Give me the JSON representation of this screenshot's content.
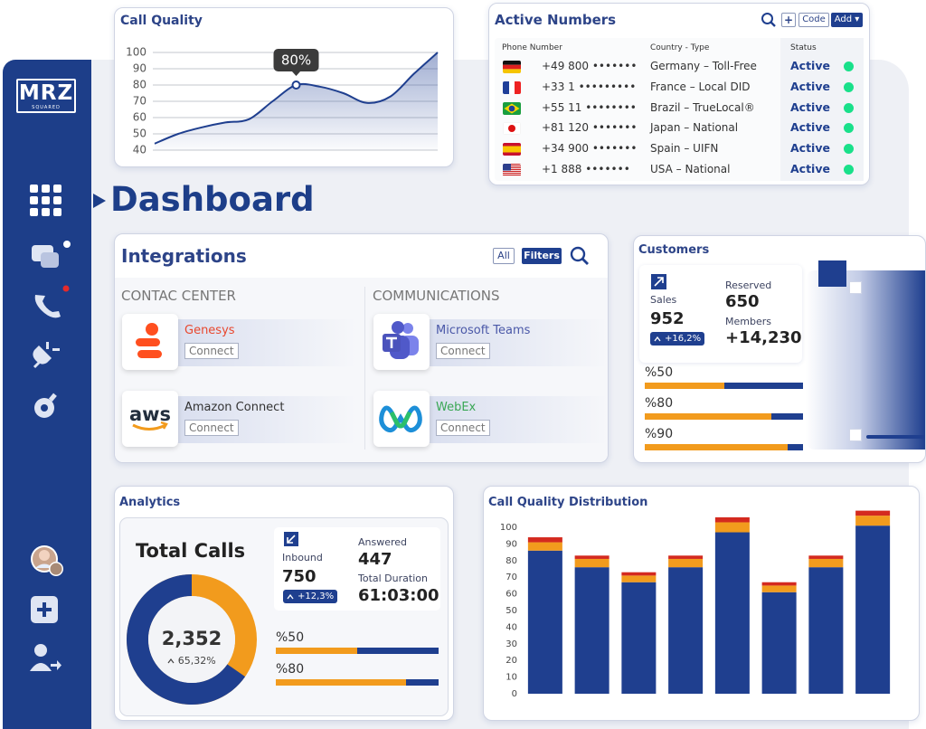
{
  "brand": {
    "name": "MRZ",
    "tagline": "SQUARED"
  },
  "page_title": "Dashboard",
  "chart_data": [
    {
      "type": "line",
      "title": "Call Quality",
      "x": [
        0,
        1,
        2,
        3,
        4,
        5,
        6,
        7,
        8,
        9,
        10,
        11,
        12
      ],
      "xlim": [
        0,
        12
      ],
      "values": [
        44,
        50,
        54,
        57,
        59,
        70,
        80,
        79,
        75,
        69,
        73,
        87,
        100
      ],
      "color": "#1f3f8f",
      "ylim": [
        40,
        100
      ],
      "yticks": [
        40,
        50,
        60,
        70,
        80,
        90,
        100
      ],
      "grid": true,
      "annotation": {
        "x": 6,
        "y": 80,
        "text": "80%"
      }
    },
    {
      "type": "bar",
      "stacked": true,
      "title": "Call Quality Distribution",
      "categories": [
        null,
        null,
        null,
        null,
        null,
        null,
        null,
        null
      ],
      "series": [
        {
          "color": "#1f3f8f",
          "values": [
            86,
            76,
            67,
            76,
            97,
            61,
            76,
            101
          ]
        },
        {
          "color": "#f29b1d",
          "values": [
            5,
            5,
            4,
            5,
            6,
            4,
            5,
            6
          ]
        },
        {
          "color": "#d42a1f",
          "values": [
            3,
            2,
            2,
            2,
            3,
            2,
            2,
            3
          ]
        }
      ],
      "ylim": [
        0,
        110
      ],
      "yticks": [
        0,
        10,
        20,
        30,
        40,
        50,
        60,
        70,
        80,
        90,
        100
      ],
      "grid": false
    }
  ],
  "active_numbers": {
    "title": "Active Numbers",
    "buttons": {
      "code": "Code",
      "add": "Add"
    },
    "columns": [
      "Phone Number",
      "Country - Type",
      "Status"
    ],
    "rows": [
      [
        "+49 800 •••••••",
        "Germany – Toll-Free",
        "Active"
      ],
      [
        "+33 1 •••••••••",
        "France – Local DID",
        "Active"
      ],
      [
        "+55 11 ••••••••",
        "Brazil – TrueLocal®",
        "Active"
      ],
      [
        "+81 120 •••••••",
        "Japan – National",
        "Active"
      ],
      [
        "+34 900 •••••••",
        "Spain – UIFN",
        "Active"
      ],
      [
        "+1 888 •••••••",
        "USA – National",
        "Active"
      ]
    ]
  },
  "integrations": {
    "title": "Integrations",
    "filters": [
      "All",
      "Filters"
    ],
    "sections": [
      {
        "title": "CONTAC CENTER",
        "items": [
          {
            "name": "Genesys",
            "action": "Connect"
          },
          {
            "name": "Amazon Connect",
            "logo": "aws",
            "action": "Connect"
          }
        ]
      },
      {
        "title": "COMMUNICATIONS",
        "items": [
          {
            "name": "Microsoft Teams",
            "action": "Connect"
          },
          {
            "name": "WebEx",
            "action": "Connect"
          }
        ]
      }
    ]
  },
  "customers": {
    "title": "Customers",
    "sales": {
      "label": "Sales",
      "value": "952",
      "change": "+16,2%"
    },
    "reserved": {
      "label": "Reserved",
      "value": "650"
    },
    "members": {
      "label": "Members",
      "value": "+14,230"
    },
    "progress": [
      {
        "value": 50,
        "label": "%50"
      },
      {
        "value": 80,
        "label": "%80"
      },
      {
        "value": 90,
        "label": "%90"
      }
    ]
  },
  "analytics": {
    "title": "Analytics",
    "total_calls": {
      "label": "Total Calls",
      "value": "2,352",
      "share": {
        "value": 65.32,
        "label": "65,32%"
      }
    },
    "inbound": {
      "label": "Inbound",
      "value": "750",
      "change": "+12,3%"
    },
    "answered": {
      "label": "Answered",
      "value": "447"
    },
    "duration": {
      "label": "Total Duration",
      "value": "61:03:00"
    },
    "progress": [
      {
        "value": 50,
        "label": "%50"
      },
      {
        "value": 80,
        "label": "%80"
      }
    ]
  }
}
